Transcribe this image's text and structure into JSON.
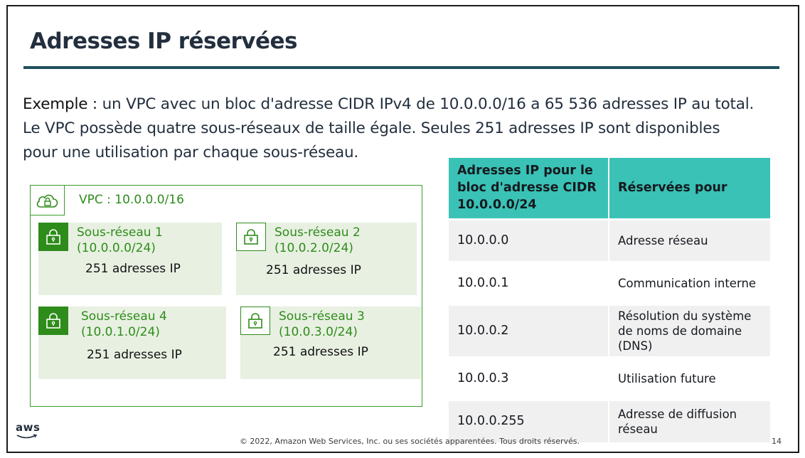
{
  "slide": {
    "title": "Adresses IP réservées",
    "intro_lead": "Exemple : ",
    "intro_body": "un VPC avec un bloc d'adresse CIDR IPv4 de 10.0.0.0/16 a 65 536 adresses IP au total. Le VPC possède quatre sous-réseaux de taille égale. Seules 251 adresses IP sont disponibles pour une utilisation par chaque sous-réseau."
  },
  "diagram": {
    "vpc_label": "VPC : 10.0.0.0/16",
    "subnets": [
      {
        "name": "Sous-réseau 1",
        "cidr": "(10.0.0.0/24)",
        "count": "251 adresses IP"
      },
      {
        "name": "Sous-réseau 2",
        "cidr": "(10.0.2.0/24)",
        "count": "251 adresses IP"
      },
      {
        "name": "Sous-réseau 4",
        "cidr": "(10.0.1.0/24)",
        "count": "251 adresses IP"
      },
      {
        "name": "Sous-réseau 3",
        "cidr": "(10.0.3.0/24)",
        "count": "251 adresses IP"
      }
    ],
    "icons": {
      "vpc": "cloud-lock-icon",
      "subnet": "lock-icon"
    },
    "colors": {
      "green": "#2e8c1a",
      "subnet_bg": "#e8f0e2"
    }
  },
  "table": {
    "headers": [
      "Adresses IP pour le bloc d'adresse CIDR 10.0.0.0/24",
      "Réservées pour"
    ],
    "rows": [
      [
        "10.0.0.0",
        "Adresse réseau"
      ],
      [
        "10.0.0.1",
        "Communication interne"
      ],
      [
        "10.0.0.2",
        "Résolution du système de noms de domaine (DNS)"
      ],
      [
        "10.0.0.3",
        "Utilisation future"
      ],
      [
        "10.0.0.255",
        "Adresse de diffusion réseau"
      ]
    ],
    "header_color": "#39c2b5"
  },
  "footer": {
    "logo": "aws",
    "copyright": "© 2022, Amazon Web Services, Inc. ou ses sociétés apparentées. Tous droits réservés.",
    "page_number": "14"
  }
}
